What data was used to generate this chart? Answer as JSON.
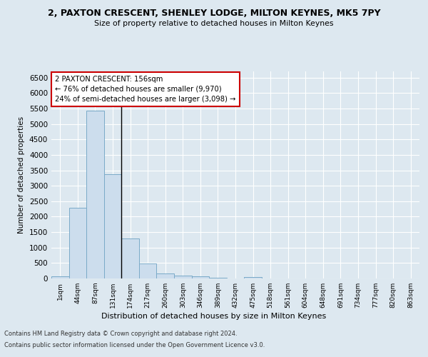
{
  "title": "2, PAXTON CRESCENT, SHENLEY LODGE, MILTON KEYNES, MK5 7PY",
  "subtitle": "Size of property relative to detached houses in Milton Keynes",
  "xlabel": "Distribution of detached houses by size in Milton Keynes",
  "ylabel": "Number of detached properties",
  "footer_line1": "Contains HM Land Registry data © Crown copyright and database right 2024.",
  "footer_line2": "Contains public sector information licensed under the Open Government Licence v3.0.",
  "bin_labels": [
    "1sqm",
    "44sqm",
    "87sqm",
    "131sqm",
    "174sqm",
    "217sqm",
    "260sqm",
    "303sqm",
    "346sqm",
    "389sqm",
    "432sqm",
    "475sqm",
    "518sqm",
    "561sqm",
    "604sqm",
    "648sqm",
    "691sqm",
    "734sqm",
    "777sqm",
    "820sqm",
    "863sqm"
  ],
  "bar_values": [
    60,
    2280,
    5430,
    3380,
    1300,
    480,
    165,
    95,
    60,
    30,
    0,
    50,
    0,
    0,
    0,
    0,
    0,
    0,
    0,
    0,
    0
  ],
  "bar_color": "#ccdded",
  "bar_edge_color": "#7aaac8",
  "property_line_x": 3.5,
  "ylim": [
    0,
    6700
  ],
  "yticks": [
    0,
    500,
    1000,
    1500,
    2000,
    2500,
    3000,
    3500,
    4000,
    4500,
    5000,
    5500,
    6000,
    6500
  ],
  "annotation_title": "2 PAXTON CRESCENT: 156sqm",
  "annotation_line1": "← 76% of detached houses are smaller (9,970)",
  "annotation_line2": "24% of semi-detached houses are larger (3,098) →",
  "annotation_box_color": "#ffffff",
  "annotation_box_edge": "#cc0000",
  "vline_color": "#000000",
  "background_color": "#dde8f0",
  "plot_bg_color": "#dde8f0",
  "grid_color": "#ffffff"
}
